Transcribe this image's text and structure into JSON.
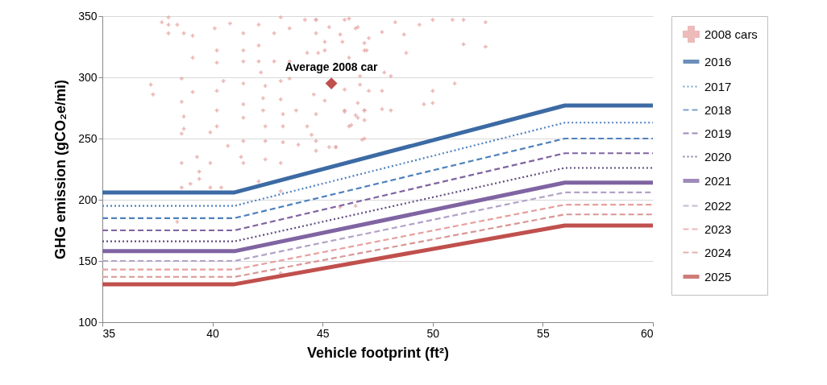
{
  "chart_data": {
    "type": "line",
    "xlabel": "Vehicle footprint (ft²)",
    "ylabel": "GHG emission (gCO₂e/mi)",
    "x": [
      35,
      41,
      56,
      60
    ],
    "xlim": [
      35,
      60
    ],
    "xticks": [
      35,
      40,
      45,
      50,
      55,
      60
    ],
    "ylim": [
      100,
      350
    ],
    "yticks": [
      100,
      150,
      200,
      250,
      300,
      350
    ],
    "grid": "y",
    "legend": "right",
    "annotations": [
      {
        "text": "Average 2008 car",
        "x": 45.4,
        "y": 295
      }
    ],
    "series": [
      {
        "name": "2008 cars",
        "type": "scatter",
        "marker": "cross",
        "color": "#e6a5a3",
        "x": [
          37.7,
          38.0,
          38.0,
          38.0,
          38.4,
          38.7,
          39.1,
          39.1,
          37.2,
          37.3,
          38.6,
          39.1,
          38.6,
          38.7,
          38.7,
          38.6,
          38.6,
          39.3,
          39.4,
          39.4,
          39.0,
          38.6,
          39.9,
          39.9,
          40.4,
          40.1,
          40.8,
          40.2,
          40.2,
          40.5,
          40.2,
          40.2,
          40.2,
          39.9,
          40.7,
          41.4,
          41.4,
          41.4,
          41.4,
          41.4,
          41.4,
          41.4,
          41.3,
          41.4,
          42.1,
          42.1,
          42.1,
          42.2,
          42.4,
          42.3,
          42.3,
          42.4,
          42.4,
          42.4,
          43.1,
          42.8,
          43.1,
          43.5,
          42.8,
          43.5,
          43.1,
          43.5,
          43.1,
          43.2,
          43.2,
          43.2,
          43.8,
          43.9,
          44.2,
          44.7,
          44.7,
          45.1,
          44.8,
          45.1,
          44.3,
          44.6,
          45.1,
          44.7,
          44.3,
          44.5,
          44.7,
          44.7,
          45.6,
          45.8,
          45.9,
          46.2,
          46.0,
          46.0,
          46.5,
          46.2,
          46.6,
          46.9,
          46.9,
          46.9,
          46.2,
          46.6,
          46.9,
          46.9,
          52.4,
          51.4,
          52.4,
          51.0,
          50.0,
          50.0,
          48.1,
          47.7,
          47.1,
          46.7,
          46.9,
          46.6,
          46.3,
          46.8,
          45.6,
          46.0,
          48.8,
          48.7,
          49.4,
          50.0,
          50.9,
          51.4,
          48.3,
          47.7,
          47.0,
          47.1,
          46.0,
          46.5,
          45.3,
          44.7,
          47.8,
          48.1,
          46.7,
          42.1,
          43.1,
          38.4,
          43.1,
          46.5,
          45.8,
          49.6,
          47.7,
          45.3
        ],
        "values": [
          345,
          349,
          343,
          336,
          343,
          336,
          334,
          316,
          294,
          286,
          299,
          288,
          280,
          268,
          258,
          254,
          230,
          235,
          223,
          217,
          213,
          210,
          230,
          210,
          210,
          340,
          344,
          322,
          312,
          297,
          289,
          273,
          260,
          255,
          244,
          336,
          322,
          313,
          295,
          278,
          267,
          248,
          235,
          230,
          343,
          326,
          313,
          304,
          293,
          283,
          273,
          260,
          248,
          233,
          230,
          336,
          349,
          340,
          313,
          313,
          297,
          299,
          282,
          270,
          260,
          247,
          273,
          245,
          347,
          347,
          336,
          329,
          320,
          322,
          320,
          286,
          281,
          270,
          260,
          253,
          248,
          240,
          243,
          335,
          329,
          316,
          290,
          273,
          269,
          260,
          279,
          273,
          265,
          250,
          348,
          341,
          328,
          322,
          345,
          327,
          325,
          295,
          279,
          289,
          273,
          289,
          289,
          294,
          273,
          267,
          261,
          249,
          243,
          272,
          320,
          335,
          343,
          347,
          347,
          347,
          345,
          337,
          322,
          332,
          347,
          340,
          341,
          347,
          304,
          301,
          301,
          215,
          207,
          182,
          140,
          195,
          194,
          278,
          274,
          243
        ]
      },
      {
        "type": "scatter",
        "marker": "diamond",
        "color": "#c0504d",
        "x": [
          45.4
        ],
        "values": [
          295
        ]
      },
      {
        "name": "2016",
        "color": "#3c6aa4",
        "line_style": "solid",
        "values": [
          206,
          206,
          277,
          277
        ]
      },
      {
        "name": "2017",
        "color": "#4f81bd",
        "line_style": "dotted",
        "values": [
          195,
          195,
          263,
          263
        ]
      },
      {
        "name": "2018",
        "color": "#4f81bd",
        "line_style": "dashed",
        "values": [
          185,
          185,
          250,
          250
        ]
      },
      {
        "name": "2019",
        "color": "#8064a2",
        "line_style": "dashed",
        "values": [
          175,
          175,
          238,
          238
        ]
      },
      {
        "name": "2020",
        "color": "#5f4a7f",
        "line_style": "dotted",
        "values": [
          166,
          166,
          226,
          226
        ]
      },
      {
        "name": "2021",
        "color": "#8064a2",
        "line_style": "solid",
        "values": [
          158,
          158,
          214,
          214
        ]
      },
      {
        "name": "2022",
        "color": "#b3a2c7",
        "line_style": "dashed",
        "values": [
          150,
          150,
          206,
          206
        ]
      },
      {
        "name": "2023",
        "color": "#e6a09e",
        "line_style": "dashed",
        "values": [
          143,
          143,
          196,
          196
        ]
      },
      {
        "name": "2024",
        "color": "#d99694",
        "line_style": "dashed",
        "values": [
          137,
          137,
          188,
          188
        ]
      },
      {
        "name": "2025",
        "color": "#c0504d",
        "line_style": "solid",
        "values": [
          131,
          131,
          179,
          179
        ]
      }
    ]
  }
}
